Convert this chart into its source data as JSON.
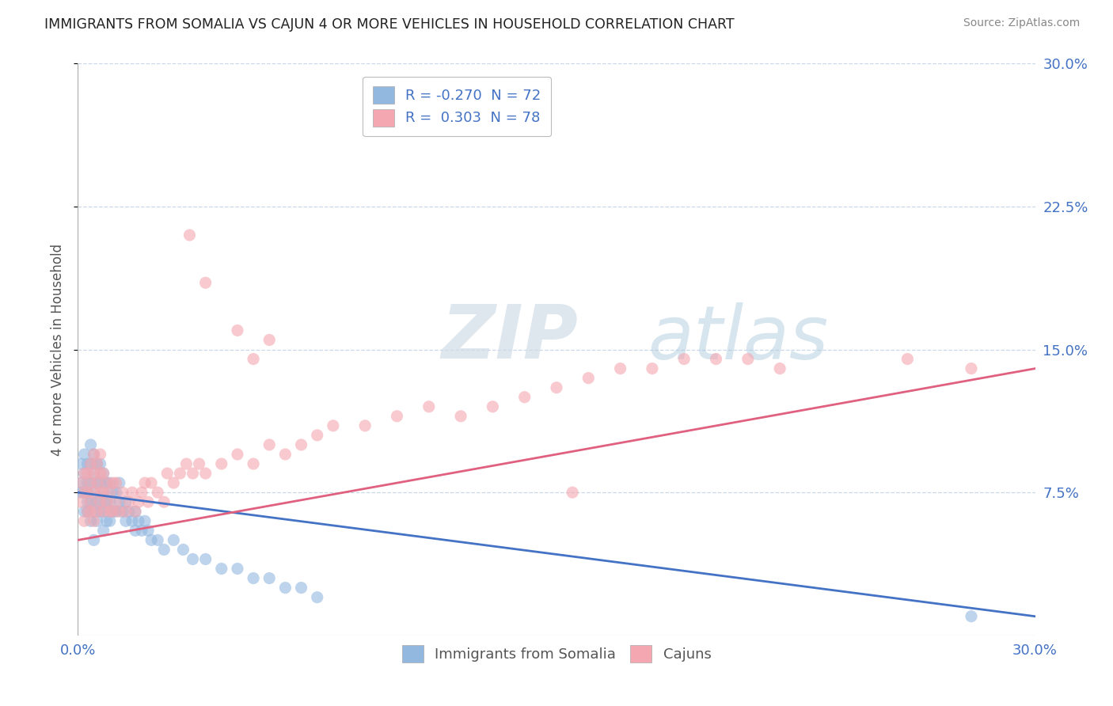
{
  "title": "IMMIGRANTS FROM SOMALIA VS CAJUN 4 OR MORE VEHICLES IN HOUSEHOLD CORRELATION CHART",
  "source": "Source: ZipAtlas.com",
  "ylabel": "4 or more Vehicles in Household",
  "xlim": [
    0.0,
    0.3
  ],
  "ylim": [
    0.0,
    0.3
  ],
  "xtick_labels": [
    "0.0%",
    "30.0%"
  ],
  "ytick_right_labels": [
    "7.5%",
    "15.0%",
    "22.5%",
    "30.0%"
  ],
  "ytick_right_values": [
    0.075,
    0.15,
    0.225,
    0.3
  ],
  "legend_labels": [
    "Immigrants from Somalia",
    "Cajuns"
  ],
  "somalia_R": -0.27,
  "somalia_N": 72,
  "cajun_R": 0.303,
  "cajun_N": 78,
  "somalia_color": "#93b8e0",
  "cajun_color": "#f4a7b0",
  "somalia_line_color": "#4472c4",
  "cajun_line_color": "#e06080",
  "watermark_zip": "ZIP",
  "watermark_atlas": "atlas",
  "background_color": "#ffffff",
  "grid_color": "#c8d8e8",
  "legend_fontsize": 13,
  "title_fontsize": 13,
  "somalia_scatter_x": [
    0.001,
    0.001,
    0.001,
    0.002,
    0.002,
    0.002,
    0.002,
    0.003,
    0.003,
    0.003,
    0.003,
    0.003,
    0.004,
    0.004,
    0.004,
    0.004,
    0.004,
    0.005,
    0.005,
    0.005,
    0.005,
    0.005,
    0.006,
    0.006,
    0.006,
    0.006,
    0.007,
    0.007,
    0.007,
    0.007,
    0.008,
    0.008,
    0.008,
    0.008,
    0.009,
    0.009,
    0.009,
    0.01,
    0.01,
    0.01,
    0.011,
    0.011,
    0.012,
    0.012,
    0.013,
    0.013,
    0.014,
    0.015,
    0.015,
    0.016,
    0.017,
    0.018,
    0.018,
    0.019,
    0.02,
    0.021,
    0.022,
    0.023,
    0.025,
    0.027,
    0.03,
    0.033,
    0.036,
    0.04,
    0.045,
    0.05,
    0.055,
    0.06,
    0.065,
    0.07,
    0.075,
    0.28
  ],
  "somalia_scatter_y": [
    0.075,
    0.08,
    0.09,
    0.065,
    0.075,
    0.085,
    0.095,
    0.07,
    0.08,
    0.09,
    0.065,
    0.075,
    0.06,
    0.07,
    0.08,
    0.09,
    0.1,
    0.065,
    0.075,
    0.085,
    0.095,
    0.05,
    0.06,
    0.07,
    0.08,
    0.09,
    0.07,
    0.08,
    0.09,
    0.065,
    0.065,
    0.075,
    0.085,
    0.055,
    0.06,
    0.07,
    0.08,
    0.06,
    0.07,
    0.08,
    0.065,
    0.075,
    0.065,
    0.075,
    0.07,
    0.08,
    0.065,
    0.06,
    0.07,
    0.065,
    0.06,
    0.055,
    0.065,
    0.06,
    0.055,
    0.06,
    0.055,
    0.05,
    0.05,
    0.045,
    0.05,
    0.045,
    0.04,
    0.04,
    0.035,
    0.035,
    0.03,
    0.03,
    0.025,
    0.025,
    0.02,
    0.01
  ],
  "cajun_scatter_x": [
    0.001,
    0.001,
    0.002,
    0.002,
    0.002,
    0.003,
    0.003,
    0.003,
    0.004,
    0.004,
    0.004,
    0.004,
    0.005,
    0.005,
    0.005,
    0.005,
    0.006,
    0.006,
    0.006,
    0.007,
    0.007,
    0.007,
    0.007,
    0.008,
    0.008,
    0.008,
    0.009,
    0.009,
    0.01,
    0.01,
    0.011,
    0.011,
    0.012,
    0.012,
    0.013,
    0.014,
    0.015,
    0.016,
    0.017,
    0.018,
    0.019,
    0.02,
    0.021,
    0.022,
    0.023,
    0.025,
    0.027,
    0.028,
    0.03,
    0.032,
    0.034,
    0.036,
    0.038,
    0.04,
    0.045,
    0.05,
    0.055,
    0.06,
    0.065,
    0.07,
    0.075,
    0.08,
    0.09,
    0.1,
    0.11,
    0.12,
    0.13,
    0.14,
    0.15,
    0.16,
    0.17,
    0.18,
    0.19,
    0.2,
    0.21,
    0.22,
    0.26,
    0.28
  ],
  "cajun_scatter_y": [
    0.07,
    0.08,
    0.06,
    0.075,
    0.085,
    0.065,
    0.075,
    0.085,
    0.07,
    0.08,
    0.09,
    0.065,
    0.06,
    0.075,
    0.085,
    0.095,
    0.065,
    0.08,
    0.09,
    0.07,
    0.075,
    0.085,
    0.095,
    0.065,
    0.075,
    0.085,
    0.07,
    0.08,
    0.065,
    0.075,
    0.065,
    0.08,
    0.07,
    0.08,
    0.065,
    0.075,
    0.065,
    0.07,
    0.075,
    0.065,
    0.07,
    0.075,
    0.08,
    0.07,
    0.08,
    0.075,
    0.07,
    0.085,
    0.08,
    0.085,
    0.09,
    0.085,
    0.09,
    0.085,
    0.09,
    0.095,
    0.09,
    0.1,
    0.095,
    0.1,
    0.105,
    0.11,
    0.11,
    0.115,
    0.12,
    0.115,
    0.12,
    0.125,
    0.13,
    0.135,
    0.14,
    0.14,
    0.145,
    0.145,
    0.145,
    0.14,
    0.145,
    0.14
  ],
  "cajun_outliers_x": [
    0.035,
    0.04,
    0.05,
    0.055,
    0.06,
    0.155
  ],
  "cajun_outliers_y": [
    0.21,
    0.185,
    0.16,
    0.145,
    0.155,
    0.075
  ]
}
